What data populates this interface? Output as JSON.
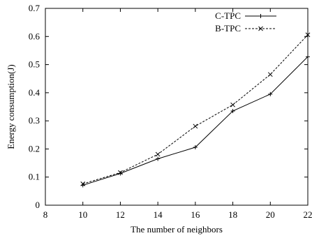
{
  "chart_data": {
    "type": "line",
    "title": "",
    "xlabel": "The number of neighbors",
    "ylabel": "Energy consumption(J)",
    "xlim": [
      8,
      22
    ],
    "ylim": [
      0,
      0.7
    ],
    "xticks": [
      8,
      10,
      12,
      14,
      16,
      18,
      20,
      22
    ],
    "yticks": [
      0,
      0.1,
      0.2,
      0.3,
      0.4,
      0.5,
      0.6,
      0.7
    ],
    "grid": false,
    "legend_position": "top-right",
    "x": [
      10,
      12,
      14,
      16,
      18,
      20,
      22
    ],
    "series": [
      {
        "name": "C-TPC",
        "values": [
          0.071,
          0.113,
          0.165,
          0.206,
          0.335,
          0.395,
          0.528
        ],
        "line_style": "solid",
        "marker": "plus"
      },
      {
        "name": "B-TPC",
        "values": [
          0.076,
          0.116,
          0.181,
          0.281,
          0.357,
          0.465,
          0.606
        ],
        "line_style": "dashed",
        "marker": "cross"
      }
    ]
  }
}
